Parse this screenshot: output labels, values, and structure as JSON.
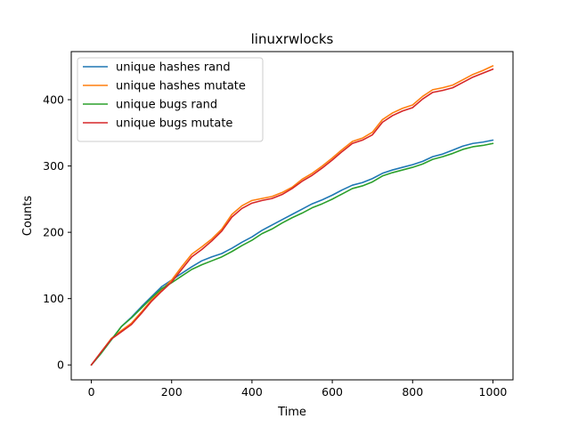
{
  "chart_data": {
    "type": "line",
    "title": "linuxrwlocks",
    "xlabel": "Time",
    "ylabel": "Counts",
    "xlim": [
      -50,
      1050
    ],
    "ylim": [
      -22.5,
      472.5
    ],
    "xticks": [
      0,
      200,
      400,
      600,
      800,
      1000
    ],
    "yticks": [
      0,
      100,
      200,
      300,
      400
    ],
    "grid": false,
    "legend_position": "top-left",
    "series": [
      {
        "name": "unique hashes rand",
        "color": "#1f77b4",
        "points": [
          [
            0,
            0
          ],
          [
            25,
            18
          ],
          [
            50,
            38
          ],
          [
            75,
            58
          ],
          [
            100,
            72
          ],
          [
            125,
            88
          ],
          [
            150,
            103
          ],
          [
            175,
            118
          ],
          [
            200,
            128
          ],
          [
            225,
            138
          ],
          [
            250,
            148
          ],
          [
            275,
            157
          ],
          [
            300,
            163
          ],
          [
            325,
            168
          ],
          [
            350,
            176
          ],
          [
            375,
            185
          ],
          [
            400,
            193
          ],
          [
            425,
            203
          ],
          [
            450,
            211
          ],
          [
            475,
            219
          ],
          [
            500,
            227
          ],
          [
            525,
            235
          ],
          [
            550,
            243
          ],
          [
            575,
            249
          ],
          [
            600,
            256
          ],
          [
            625,
            264
          ],
          [
            650,
            271
          ],
          [
            675,
            275
          ],
          [
            700,
            281
          ],
          [
            725,
            289
          ],
          [
            750,
            294
          ],
          [
            775,
            298
          ],
          [
            800,
            302
          ],
          [
            825,
            307
          ],
          [
            850,
            314
          ],
          [
            875,
            318
          ],
          [
            900,
            324
          ],
          [
            925,
            330
          ],
          [
            950,
            334
          ],
          [
            975,
            336
          ],
          [
            1000,
            339
          ]
        ]
      },
      {
        "name": "unique hashes mutate",
        "color": "#ff7f0e",
        "points": [
          [
            0,
            0
          ],
          [
            25,
            20
          ],
          [
            50,
            40
          ],
          [
            75,
            52
          ],
          [
            100,
            63
          ],
          [
            125,
            80
          ],
          [
            150,
            98
          ],
          [
            175,
            113
          ],
          [
            200,
            128
          ],
          [
            225,
            148
          ],
          [
            250,
            167
          ],
          [
            275,
            178
          ],
          [
            300,
            190
          ],
          [
            325,
            205
          ],
          [
            350,
            227
          ],
          [
            375,
            240
          ],
          [
            400,
            248
          ],
          [
            425,
            251
          ],
          [
            450,
            254
          ],
          [
            475,
            260
          ],
          [
            500,
            268
          ],
          [
            525,
            280
          ],
          [
            550,
            289
          ],
          [
            575,
            300
          ],
          [
            600,
            312
          ],
          [
            625,
            325
          ],
          [
            650,
            337
          ],
          [
            675,
            342
          ],
          [
            700,
            351
          ],
          [
            725,
            370
          ],
          [
            750,
            380
          ],
          [
            775,
            387
          ],
          [
            800,
            392
          ],
          [
            825,
            405
          ],
          [
            850,
            415
          ],
          [
            875,
            418
          ],
          [
            900,
            422
          ],
          [
            925,
            430
          ],
          [
            950,
            438
          ],
          [
            975,
            444
          ],
          [
            1000,
            451
          ]
        ]
      },
      {
        "name": "unique bugs rand",
        "color": "#2ca02c",
        "points": [
          [
            0,
            0
          ],
          [
            25,
            18
          ],
          [
            50,
            38
          ],
          [
            75,
            58
          ],
          [
            100,
            71
          ],
          [
            125,
            86
          ],
          [
            150,
            101
          ],
          [
            175,
            115
          ],
          [
            200,
            124
          ],
          [
            225,
            134
          ],
          [
            250,
            144
          ],
          [
            275,
            151
          ],
          [
            300,
            157
          ],
          [
            325,
            163
          ],
          [
            350,
            171
          ],
          [
            375,
            180
          ],
          [
            400,
            188
          ],
          [
            425,
            198
          ],
          [
            450,
            205
          ],
          [
            475,
            214
          ],
          [
            500,
            222
          ],
          [
            525,
            229
          ],
          [
            550,
            237
          ],
          [
            575,
            243
          ],
          [
            600,
            250
          ],
          [
            625,
            258
          ],
          [
            650,
            266
          ],
          [
            675,
            270
          ],
          [
            700,
            276
          ],
          [
            725,
            285
          ],
          [
            750,
            290
          ],
          [
            775,
            294
          ],
          [
            800,
            298
          ],
          [
            825,
            303
          ],
          [
            850,
            310
          ],
          [
            875,
            314
          ],
          [
            900,
            319
          ],
          [
            925,
            325
          ],
          [
            950,
            329
          ],
          [
            975,
            331
          ],
          [
            1000,
            334
          ]
        ]
      },
      {
        "name": "unique bugs mutate",
        "color": "#d62728",
        "points": [
          [
            0,
            0
          ],
          [
            25,
            20
          ],
          [
            50,
            39
          ],
          [
            75,
            50
          ],
          [
            100,
            61
          ],
          [
            125,
            78
          ],
          [
            150,
            96
          ],
          [
            175,
            111
          ],
          [
            200,
            125
          ],
          [
            225,
            144
          ],
          [
            250,
            163
          ],
          [
            275,
            174
          ],
          [
            300,
            187
          ],
          [
            325,
            202
          ],
          [
            350,
            223
          ],
          [
            375,
            236
          ],
          [
            400,
            244
          ],
          [
            425,
            248
          ],
          [
            450,
            251
          ],
          [
            475,
            257
          ],
          [
            500,
            266
          ],
          [
            525,
            277
          ],
          [
            550,
            286
          ],
          [
            575,
            297
          ],
          [
            600,
            309
          ],
          [
            625,
            322
          ],
          [
            650,
            334
          ],
          [
            675,
            339
          ],
          [
            700,
            347
          ],
          [
            725,
            366
          ],
          [
            750,
            376
          ],
          [
            775,
            383
          ],
          [
            800,
            388
          ],
          [
            825,
            401
          ],
          [
            850,
            411
          ],
          [
            875,
            414
          ],
          [
            900,
            418
          ],
          [
            925,
            426
          ],
          [
            950,
            434
          ],
          [
            975,
            440
          ],
          [
            1000,
            446
          ]
        ]
      }
    ]
  }
}
